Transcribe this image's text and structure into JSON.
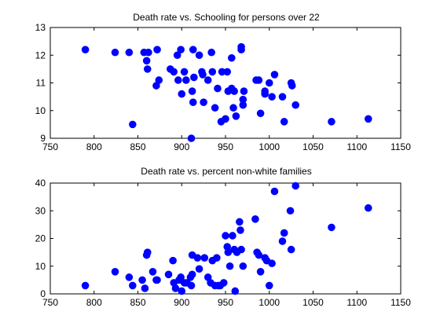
{
  "chart_data": [
    {
      "type": "scatter",
      "title": "Death rate vs. Schooling for persons over 22",
      "xlabel": "",
      "ylabel": "",
      "xlim": [
        750,
        1150
      ],
      "ylim": [
        9,
        13
      ],
      "xticks": [
        750,
        800,
        850,
        900,
        950,
        1000,
        1050,
        1100,
        1150
      ],
      "yticks": [
        9,
        10,
        11,
        12,
        13
      ],
      "grid": false,
      "marker_color": "#0000ff",
      "x": [
        790,
        824,
        840,
        844,
        857,
        860,
        861,
        862,
        871,
        872,
        874,
        887,
        891,
        895,
        896,
        899,
        900,
        903,
        905,
        911,
        912,
        913,
        913,
        914,
        920,
        923,
        924,
        925,
        930,
        934,
        935,
        938,
        941,
        945,
        946,
        950,
        952,
        953,
        957,
        957,
        959,
        960,
        962,
        968,
        968,
        970,
        970,
        971,
        985,
        988,
        990,
        995,
        995,
        1000,
        1003,
        1006,
        1015,
        1017,
        1025,
        1026,
        1030,
        1071,
        1113
      ],
      "y": [
        12.2,
        12.1,
        12.1,
        9.5,
        12.1,
        11.8,
        11.5,
        12.1,
        10.9,
        12.2,
        11.1,
        11.5,
        11.4,
        12.0,
        11.1,
        12.2,
        10.6,
        11.4,
        11.1,
        9.0,
        10.7,
        10.3,
        12.2,
        11.2,
        12.0,
        11.4,
        11.3,
        10.3,
        11.1,
        12.1,
        11.4,
        10.1,
        10.8,
        9.6,
        11.4,
        9.7,
        11.4,
        10.7,
        10.8,
        11.9,
        10.1,
        10.7,
        9.8,
        12.2,
        12.3,
        10.2,
        10.4,
        10.7,
        11.1,
        11.1,
        9.9,
        10.6,
        10.7,
        11.0,
        10.5,
        11.3,
        10.5,
        9.6,
        11.0,
        10.9,
        10.2,
        9.6,
        9.7
      ]
    },
    {
      "type": "scatter",
      "title": "Death rate vs. percent non-white families",
      "xlabel": "",
      "ylabel": "",
      "xlim": [
        750,
        1150
      ],
      "ylim": [
        0,
        40
      ],
      "xticks": [
        750,
        800,
        850,
        900,
        950,
        1000,
        1050,
        1100,
        1150
      ],
      "yticks": [
        0,
        10,
        20,
        30,
        40
      ],
      "grid": false,
      "marker_color": "#0000ff",
      "x": [
        790,
        824,
        840,
        844,
        855,
        858,
        860,
        861,
        867,
        871,
        872,
        885,
        890,
        891,
        893,
        897,
        899,
        900,
        903,
        906,
        910,
        911,
        912,
        912,
        918,
        920,
        926,
        930,
        933,
        935,
        938,
        940,
        942,
        944,
        948,
        950,
        952,
        953,
        955,
        958,
        960,
        961,
        963,
        966,
        967,
        968,
        970,
        984,
        986,
        988,
        990,
        995,
        997,
        1000,
        1003,
        1006,
        1015,
        1017,
        1024,
        1025,
        1030,
        1071,
        1113
      ],
      "y": [
        3,
        8,
        6,
        3,
        5,
        2,
        14,
        15,
        8,
        5,
        5,
        7,
        12,
        4,
        2,
        5,
        6,
        1,
        4,
        4,
        6,
        3,
        14,
        7,
        13,
        9,
        13,
        6,
        4,
        12,
        3,
        13,
        3,
        3,
        4,
        21,
        17,
        15,
        10,
        21,
        16,
        1,
        15,
        26,
        23,
        16,
        10,
        27,
        15,
        14,
        8,
        13,
        12,
        3,
        11,
        37,
        19,
        22,
        30,
        16,
        39,
        24,
        31
      ]
    }
  ]
}
